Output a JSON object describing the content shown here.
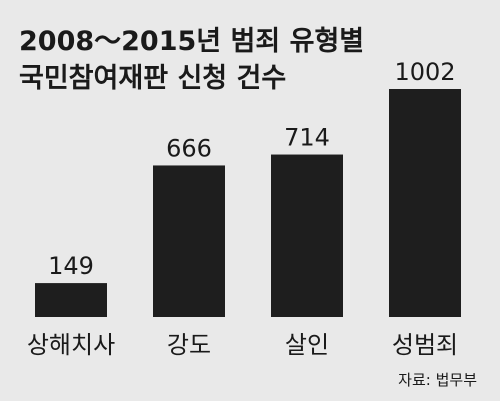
{
  "chart_data": {
    "type": "bar",
    "title_lines": [
      "2008～2015년 범죄 유형별",
      "국민참여재판 신청 건수"
    ],
    "categories": [
      "상해치사",
      "강도",
      "살인",
      "성범죄"
    ],
    "values": [
      149,
      666,
      714,
      1002
    ],
    "ylim": [
      0,
      1002
    ],
    "grid": false,
    "legend": "none",
    "bar_color": "#1e1e1e",
    "background": "#e9e9e9",
    "source": "자료: 법무부"
  }
}
